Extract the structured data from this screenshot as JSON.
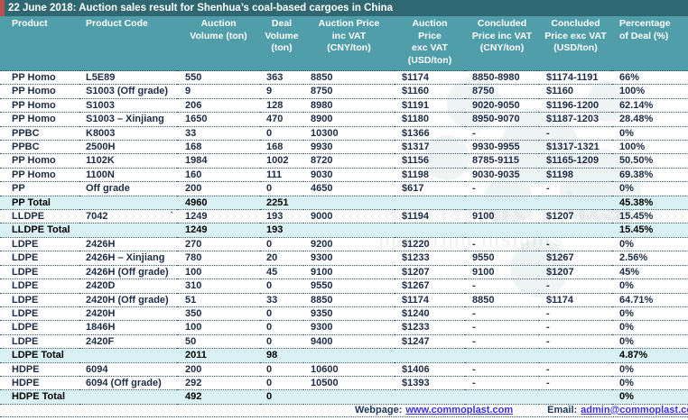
{
  "chart_data": {
    "type": "table",
    "title": "22 June 2018: Auction sales result for Shenhua’s coal-based cargoes in China",
    "columns": [
      "Product",
      "Product Code",
      "Auction\nVolume (ton)",
      "Deal\nVolume\n(ton)",
      "Auction Price\ninc VAT\n(CNY/ton)",
      "Auction\nPrice\nexc VAT\n(USD/ton)",
      "Concluded\nPrice inc VAT\n(CNY/ton)",
      "Concluded\nPrice exc VAT\n(USD/ton)",
      "Percentage\nof Deal (%)"
    ],
    "rows": [
      {
        "type": "data",
        "cells": [
          "PP Homo",
          "L5E89",
          "550",
          "363",
          "8850",
          "$1174",
          "8850-8980",
          "$1174-1191",
          "66%"
        ]
      },
      {
        "type": "data",
        "cells": [
          "PP Homo",
          "S1003 (Off grade)",
          "9",
          "9",
          "8750",
          "$1160",
          "8750",
          "$1160",
          "100%"
        ]
      },
      {
        "type": "data",
        "cells": [
          "PP Homo",
          "S1003",
          "206",
          "128",
          "8980",
          "$1191",
          "9020-9050",
          "$1196-1200",
          "62.14%"
        ]
      },
      {
        "type": "data",
        "cells": [
          "PP Homo",
          "S1003 – Xinjiang",
          "1650",
          "470",
          "8900",
          "$1180",
          "8950-9070",
          "$1187-1203",
          "28.48%"
        ]
      },
      {
        "type": "data",
        "cells": [
          "PPBC",
          "K8003",
          "33",
          "0",
          "10300",
          "$1366",
          "-",
          "-",
          "0%"
        ]
      },
      {
        "type": "data",
        "cells": [
          "PPBC",
          "2500H",
          "168",
          "168",
          "9930",
          "$1317",
          "9930-9955",
          "$1317-1321",
          "100%"
        ]
      },
      {
        "type": "data",
        "cells": [
          "PP Homo",
          "1102K",
          "1984",
          "1002",
          "8720",
          "$1156",
          "8785-9115",
          "$1165-1209",
          "50.50%"
        ]
      },
      {
        "type": "data",
        "cells": [
          "PP Homo",
          "1100N",
          "160",
          "111",
          "9030",
          "$1198",
          "9030-9035",
          "$1198",
          "69.38%"
        ]
      },
      {
        "type": "data",
        "cells": [
          "PP",
          "Off grade",
          "200",
          "0",
          "4650",
          "$617",
          "-",
          "-",
          "0%"
        ]
      },
      {
        "type": "total",
        "cells": [
          "PP Total",
          "",
          "4960",
          "2251",
          "",
          "",
          "",
          "",
          "45.38%"
        ]
      },
      {
        "type": "data",
        "cells": [
          "LLDPE",
          "7042",
          "1249",
          "193",
          "9000",
          "$1194",
          "9100",
          "$1207",
          "15.45%"
        ],
        "stray_mark": "`"
      },
      {
        "type": "total",
        "cells": [
          "LLDPE Total",
          "",
          "1249",
          "193",
          "",
          "",
          "",
          "",
          "15.45%"
        ]
      },
      {
        "type": "data",
        "cells": [
          "LDPE",
          "2426H",
          "270",
          "0",
          "9200",
          "$1220",
          "-",
          "-",
          "0%"
        ]
      },
      {
        "type": "data",
        "cells": [
          "LDPE",
          "2426H – Xinjiang",
          "780",
          "20",
          "9300",
          "$1233",
          "9550",
          "$1267",
          "2.56%"
        ]
      },
      {
        "type": "data",
        "cells": [
          "LDPE",
          "2426H (Off grade)",
          "100",
          "45",
          "9100",
          "$1207",
          "9100",
          "$1207",
          "45%"
        ]
      },
      {
        "type": "data",
        "cells": [
          "LDPE",
          "2420D",
          "310",
          "0",
          "9550",
          "$1267",
          "-",
          "-",
          "0%"
        ]
      },
      {
        "type": "data",
        "cells": [
          "LDPE",
          "2420H (Off grade)",
          "51",
          "33",
          "8850",
          "$1174",
          "8850",
          "$1174",
          "64.71%"
        ]
      },
      {
        "type": "data",
        "cells": [
          "LDPE",
          "2420H",
          "350",
          "0",
          "9350",
          "$1240",
          "-",
          "-",
          "0%"
        ]
      },
      {
        "type": "data",
        "cells": [
          "LDPE",
          "1846H",
          "100",
          "0",
          "9300",
          "$1233",
          "-",
          "-",
          "0%"
        ]
      },
      {
        "type": "data",
        "cells": [
          "LDPE",
          "2420F",
          "50",
          "0",
          "9400",
          "$1247",
          "-",
          "-",
          "0%"
        ]
      },
      {
        "type": "total",
        "cells": [
          "LDPE Total",
          "",
          "2011",
          "98",
          "",
          "",
          "",
          "",
          "4.87%"
        ]
      },
      {
        "type": "data",
        "cells": [
          "HDPE",
          "6094",
          "200",
          "0",
          "10600",
          "$1406",
          "-",
          "-",
          "0%"
        ]
      },
      {
        "type": "data",
        "cells": [
          "HDPE",
          "6094 (Off grade)",
          "292",
          "0",
          "10500",
          "$1393",
          "-",
          "-",
          "0%"
        ]
      },
      {
        "type": "total",
        "cells": [
          "HDPE Total",
          "",
          "492",
          "0",
          "",
          "",
          "",
          "",
          "0%"
        ]
      }
    ]
  },
  "footer": {
    "webpage_label": "Webpage:",
    "webpage_link": "www.commoplast.com",
    "email_label": "Email:",
    "email_link": "admin@commoplast.com"
  },
  "watermark": {
    "text_large": "commoplast",
    "text_small": "powering insights"
  },
  "colors": {
    "title_bg": "#2F6872",
    "header_bg": "#4F9EA9",
    "total_row_bg": "#D9F0F4",
    "accent_red": "#BF4F4C",
    "link_color": "#3B2EE6",
    "body_text": "#1c2c47"
  }
}
